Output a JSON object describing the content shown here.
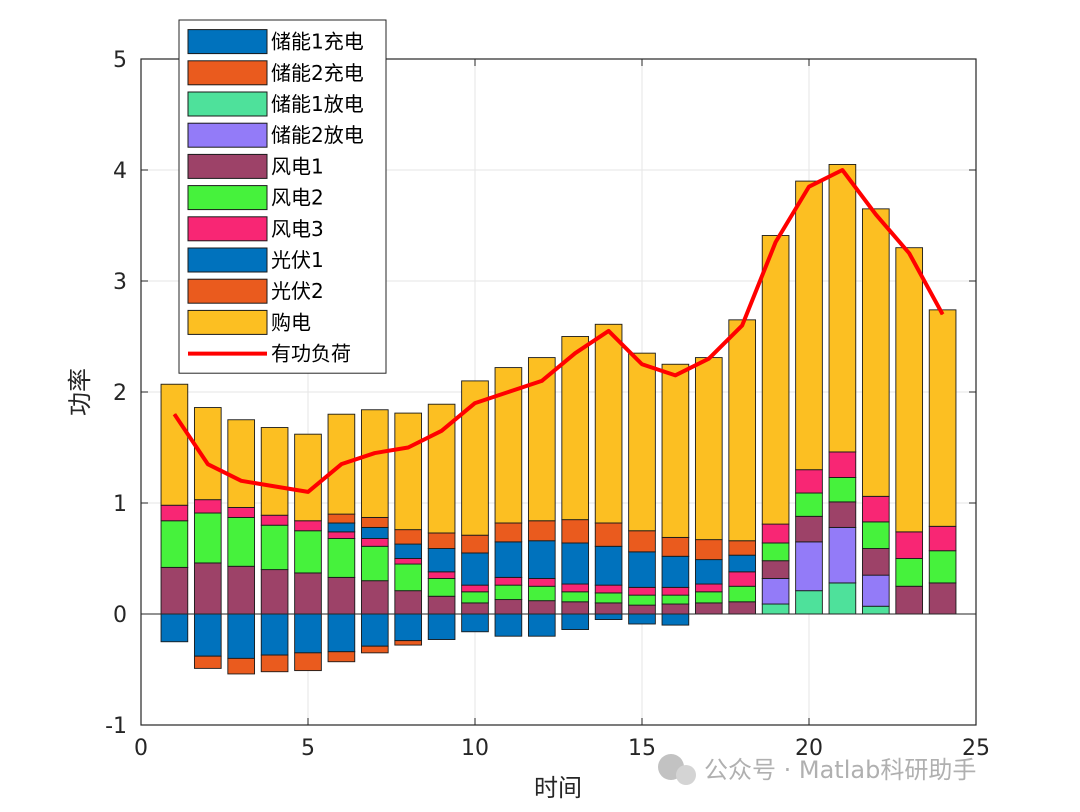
{
  "chart_data": {
    "type": "bar",
    "stacked": true,
    "xlabel": "时间",
    "ylabel": "功率",
    "xlim": [
      0,
      25
    ],
    "ylim": [
      -1,
      5
    ],
    "xticks": [
      0,
      5,
      10,
      15,
      20,
      25
    ],
    "yticks": [
      -1,
      0,
      1,
      2,
      3,
      4,
      5
    ],
    "grid": true,
    "legend_position": "top-left",
    "x": [
      1,
      2,
      3,
      4,
      5,
      6,
      7,
      8,
      9,
      10,
      11,
      12,
      13,
      14,
      15,
      16,
      17,
      18,
      19,
      20,
      21,
      22,
      23,
      24
    ],
    "series": [
      {
        "name": "储能1充电",
        "color": "#0072BD",
        "kind": "bar",
        "values": [
          -0.25,
          -0.38,
          -0.4,
          -0.37,
          -0.35,
          -0.34,
          -0.29,
          -0.24,
          -0.23,
          -0.16,
          -0.2,
          -0.2,
          -0.14,
          -0.05,
          -0.09,
          -0.1,
          0,
          0,
          0,
          0,
          0,
          0,
          0,
          0
        ]
      },
      {
        "name": "储能2充电",
        "color": "#EA5B1E",
        "kind": "bar",
        "values": [
          0,
          -0.11,
          -0.14,
          -0.15,
          -0.16,
          -0.09,
          -0.06,
          -0.04,
          0,
          0,
          0,
          0,
          0,
          0,
          0,
          0,
          0,
          0,
          0,
          0,
          0,
          0,
          0,
          0
        ]
      },
      {
        "name": "储能1放电",
        "color": "#4EE19B",
        "kind": "bar",
        "values": [
          0,
          0,
          0,
          0,
          0,
          0,
          0,
          0,
          0,
          0,
          0,
          0,
          0,
          0,
          0,
          0,
          0,
          0,
          0.09,
          0.21,
          0.28,
          0.07,
          0,
          0
        ]
      },
      {
        "name": "储能2放电",
        "color": "#937BF8",
        "kind": "bar",
        "values": [
          0,
          0,
          0,
          0,
          0,
          0,
          0,
          0,
          0,
          0,
          0,
          0,
          0,
          0,
          0,
          0,
          0,
          0,
          0.23,
          0.44,
          0.5,
          0.28,
          0,
          0
        ]
      },
      {
        "name": "风电1",
        "color": "#9D4268",
        "kind": "bar",
        "values": [
          0.42,
          0.46,
          0.43,
          0.4,
          0.37,
          0.33,
          0.3,
          0.21,
          0.16,
          0.1,
          0.13,
          0.12,
          0.11,
          0.1,
          0.08,
          0.09,
          0.1,
          0.11,
          0.16,
          0.23,
          0.23,
          0.24,
          0.25,
          0.28
        ]
      },
      {
        "name": "风电2",
        "color": "#46F23C",
        "kind": "bar",
        "values": [
          0.42,
          0.45,
          0.44,
          0.4,
          0.38,
          0.35,
          0.31,
          0.24,
          0.16,
          0.1,
          0.13,
          0.13,
          0.09,
          0.09,
          0.09,
          0.08,
          0.1,
          0.14,
          0.16,
          0.21,
          0.22,
          0.24,
          0.25,
          0.29
        ]
      },
      {
        "name": "风电3",
        "color": "#F82674",
        "kind": "bar",
        "values": [
          0.14,
          0.12,
          0.09,
          0.09,
          0.09,
          0.06,
          0.07,
          0.05,
          0.06,
          0.06,
          0.07,
          0.07,
          0.07,
          0.07,
          0.07,
          0.07,
          0.07,
          0.13,
          0.17,
          0.21,
          0.23,
          0.23,
          0.24,
          0.22
        ]
      },
      {
        "name": "光伏1",
        "color": "#0072BD",
        "kind": "bar",
        "values": [
          0,
          0,
          0,
          0,
          0,
          0.08,
          0.1,
          0.13,
          0.21,
          0.29,
          0.32,
          0.34,
          0.37,
          0.35,
          0.32,
          0.28,
          0.22,
          0.15,
          0,
          0,
          0,
          0,
          0,
          0
        ]
      },
      {
        "name": "光伏2",
        "color": "#EA5B1E",
        "kind": "bar",
        "values": [
          0,
          0,
          0,
          0,
          0,
          0.08,
          0.09,
          0.13,
          0.14,
          0.16,
          0.17,
          0.18,
          0.21,
          0.21,
          0.19,
          0.17,
          0.18,
          0.13,
          0,
          0,
          0,
          0,
          0,
          0
        ]
      },
      {
        "name": "购电",
        "color": "#FCBF22",
        "kind": "bar",
        "values": [
          1.09,
          0.83,
          0.79,
          0.79,
          0.78,
          0.9,
          0.97,
          1.05,
          1.16,
          1.39,
          1.4,
          1.47,
          1.65,
          1.79,
          1.6,
          1.56,
          1.64,
          1.99,
          2.6,
          2.6,
          2.59,
          2.59,
          2.56,
          1.95
        ]
      },
      {
        "name": "有功负荷",
        "color": "#FF0000",
        "kind": "line",
        "values": [
          1.8,
          1.35,
          1.2,
          1.15,
          1.1,
          1.35,
          1.45,
          1.5,
          1.65,
          1.9,
          2.0,
          2.1,
          2.35,
          2.55,
          2.25,
          2.15,
          2.3,
          2.6,
          3.35,
          3.85,
          4.0,
          3.6,
          3.25,
          2.7
        ]
      }
    ]
  },
  "watermark": {
    "text": "公众号 · Matlab科研助手"
  }
}
